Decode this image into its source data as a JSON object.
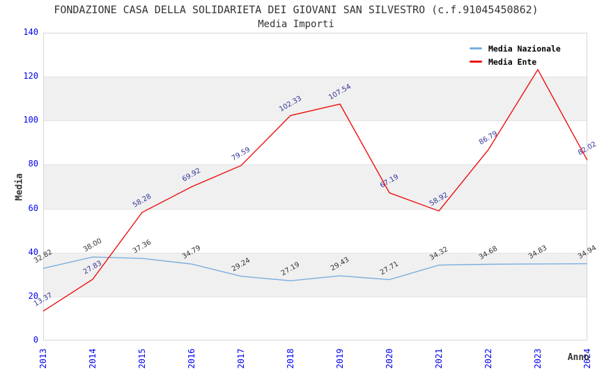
{
  "page": {
    "title": "FONDAZIONE CASA DELLA SOLIDARIETA DEI GIOVANI SAN SILVESTRO (c.f.91045450862)",
    "subtitle": "Media Importi"
  },
  "chart_data": {
    "type": "line",
    "title": "FONDAZIONE CASA DELLA SOLIDARIETA DEI GIOVANI SAN SILVESTRO (c.f.91045450862)",
    "subtitle": "Media Importi",
    "xlabel": "Anno",
    "ylabel": "Media",
    "ylim": [
      0,
      140
    ],
    "yticks": [
      0,
      20,
      40,
      60,
      80,
      100,
      120,
      140
    ],
    "categories": [
      "2013",
      "2014",
      "2015",
      "2016",
      "2017",
      "2018",
      "2019",
      "2020",
      "2021",
      "2022",
      "2023",
      "2024"
    ],
    "series": [
      {
        "name": "Media Nazionale",
        "color": "#79aede",
        "label_color": "#333333",
        "values": [
          32.82,
          38.0,
          37.36,
          34.79,
          29.24,
          27.19,
          29.43,
          27.71,
          34.32,
          34.68,
          34.83,
          34.94
        ],
        "labels": [
          "32.82",
          "38.00",
          "37.36",
          "34.79",
          "29.24",
          "27.19",
          "29.43",
          "27.71",
          "34.32",
          "34.68",
          "34.83",
          "34.94"
        ]
      },
      {
        "name": "Media Ente",
        "color": "#ee0c0c",
        "label_color": "#333399",
        "values": [
          13.37,
          27.83,
          58.28,
          69.92,
          79.59,
          102.33,
          107.54,
          67.19,
          58.92,
          86.79,
          123.2,
          82.02
        ],
        "labels": [
          "13.37",
          "27.83",
          "58.28",
          "69.92",
          "79.59",
          "102.33",
          "107.54",
          "67.19",
          "58.92",
          "86.79",
          null,
          "82.02"
        ]
      }
    ],
    "legend_position": "top-right",
    "grid": "horizontal-bands",
    "colors": {
      "tick_label": "#0000ee",
      "band": "#f0f0f0",
      "axis_text": "#333333",
      "plot_border": "#d6d6d6"
    }
  }
}
